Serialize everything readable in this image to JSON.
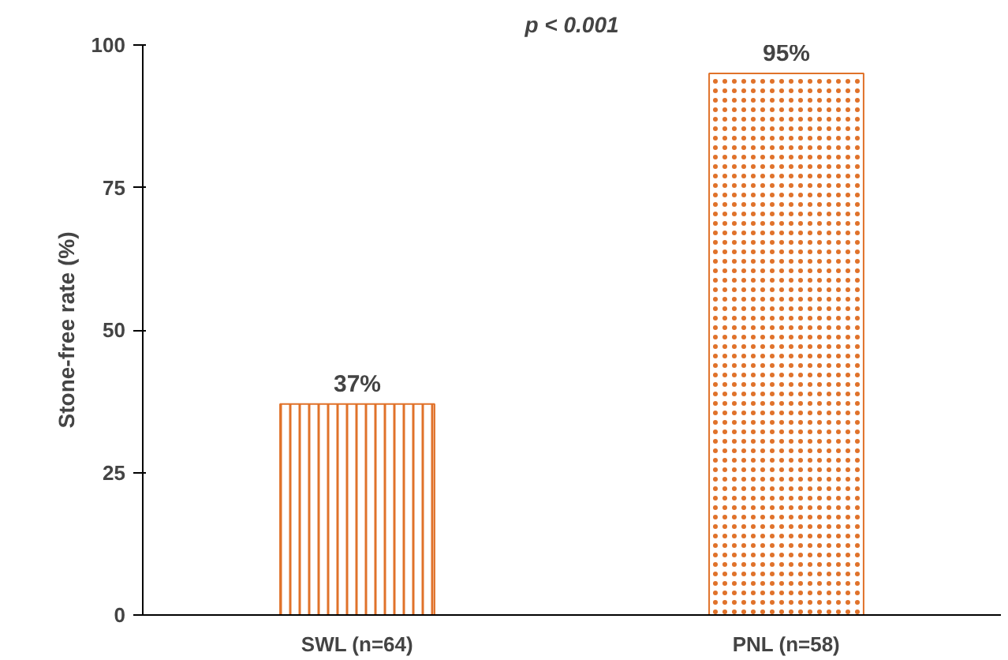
{
  "chart_data": {
    "type": "bar",
    "title": "p < 0.001",
    "ylabel": "Stone-free rate (%)",
    "categories": [
      "SWL (n=64)",
      "PNL (n=58)"
    ],
    "values": [
      37,
      95
    ],
    "value_labels": [
      "37%",
      "95%"
    ],
    "colors": [
      "#e0722a",
      "#e0722a"
    ],
    "ylim": [
      0,
      100
    ],
    "yticks": [
      0,
      25,
      50,
      75,
      100
    ],
    "grid": false
  }
}
